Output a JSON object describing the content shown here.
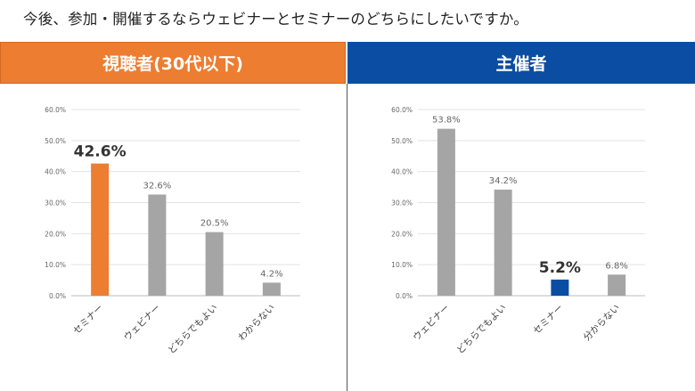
{
  "question": "今後、参加・開催するならウェビナーとセミナーのどちらにしたいですか。",
  "colors": {
    "orange": "#ED7D31",
    "blue": "#0B4DA2",
    "gray": "#A5A5A5"
  },
  "chart_data": [
    {
      "type": "bar",
      "title": "視聴者(30代以下)",
      "categories": [
        "セミナー",
        "ウェビナー",
        "どちらでもよい",
        "わからない"
      ],
      "values": [
        42.6,
        32.6,
        20.5,
        4.2
      ],
      "value_labels": [
        "42.6%",
        "32.6%",
        "20.5%",
        "4.2%"
      ],
      "highlight_index": 0,
      "highlight_color": "#ED7D31",
      "ylim": [
        0,
        60
      ],
      "yticks": [
        "0.0%",
        "10.0%",
        "20.0%",
        "30.0%",
        "40.0%",
        "50.0%",
        "60.0%"
      ],
      "grid": true
    },
    {
      "type": "bar",
      "title": "主催者",
      "categories": [
        "ウェビナー",
        "どちらでもよい",
        "セミナー",
        "分からない"
      ],
      "values": [
        53.8,
        34.2,
        5.2,
        6.8
      ],
      "value_labels": [
        "53.8%",
        "34.2%",
        "5.2%",
        "6.8%"
      ],
      "highlight_index": 2,
      "highlight_color": "#0B4DA2",
      "ylim": [
        0,
        60
      ],
      "yticks": [
        "0.0%",
        "10.0%",
        "20.0%",
        "30.0%",
        "40.0%",
        "50.0%",
        "60.0%"
      ],
      "grid": true
    }
  ]
}
